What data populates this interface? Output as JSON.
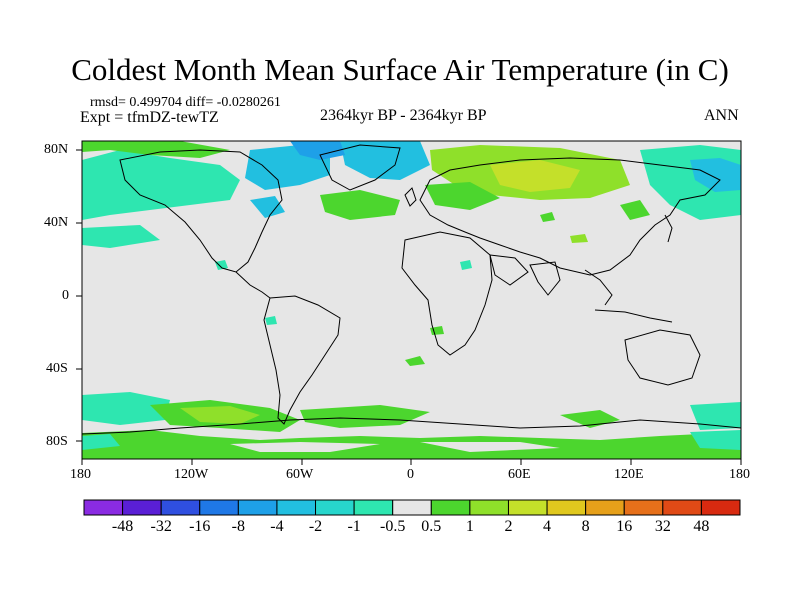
{
  "header": {
    "title": "Coldest Month Mean Surface Air Temperature (in C)",
    "stats": "rmsd= 0.499704 diff= -0.0280261",
    "experiment": "Expt = tfmDZ-tewTZ",
    "period": "2364kyr BP - 2364kyr BP",
    "season": "ANN"
  },
  "map": {
    "projection": "cylindrical-equidistant",
    "x_ticks": [
      "180",
      "120W",
      "60W",
      "0",
      "60E",
      "120E",
      "180"
    ],
    "y_ticks": [
      "80N",
      "40N",
      "0",
      "40S",
      "80S"
    ],
    "background_color": "#e6e6e6"
  },
  "colorbar": {
    "labels": [
      "-48",
      "-32",
      "-16",
      "-8",
      "-4",
      "-2",
      "-1",
      "-0.5",
      "0.5",
      "1",
      "2",
      "4",
      "8",
      "16",
      "32",
      "48"
    ],
    "colors": [
      "#8a2be2",
      "#5a1fd6",
      "#2f4fe0",
      "#1f78e6",
      "#1ea0e8",
      "#22bfe0",
      "#27d6cc",
      "#2ee6b0",
      "#e6e6e6",
      "#4cd62e",
      "#8fe02a",
      "#c4e02a",
      "#e0c81e",
      "#e6a01a",
      "#e6701a",
      "#e04a16",
      "#d82a10"
    ]
  }
}
